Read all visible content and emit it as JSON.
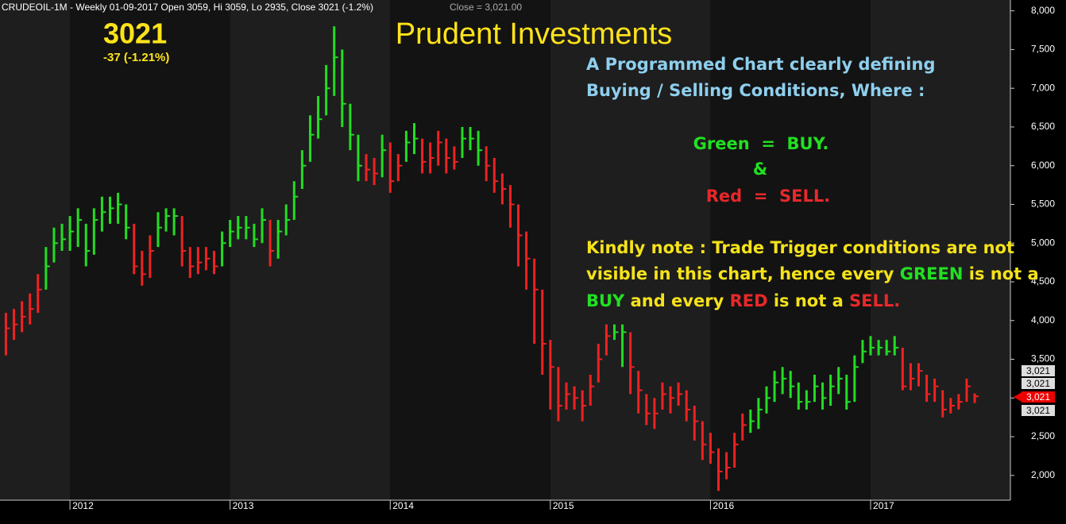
{
  "chart_data": {
    "type": "hlc",
    "header": "CRUDEOIL-1M - Weekly 01-09-2017 Open 3059, Hi 3059, Lo 2935, Close 3021 (-1.2%)",
    "header_close": "Close = 3,021.00",
    "last_price": "3021",
    "change": "-37 (-1.21%)",
    "title": "Prudent Investments",
    "annotations": [
      [
        {
          "text": "A Programmed Chart clearly defining",
          "color": "#8ecfee"
        }
      ],
      [
        {
          "text": "Buying / Selling Conditions, Where :",
          "color": "#8ecfee"
        }
      ],
      [
        {
          "text": "Green  =  BUY.",
          "color": "#22e022"
        }
      ],
      [
        {
          "text": "&",
          "color": "#22e022"
        }
      ],
      [
        {
          "text": "Red  =  SELL.",
          "color": "#e8282a"
        }
      ],
      [
        {
          "text": "Kindly note : Trade Trigger conditions are not",
          "color": "#f5e21a"
        }
      ],
      [
        {
          "text": "visible in this chart, hence every ",
          "color": "#f5e21a"
        },
        {
          "text": "GREEN",
          "color": "#22e022"
        },
        {
          "text": " is not a",
          "color": "#f5e21a"
        }
      ],
      [
        {
          "text": "BUY",
          "color": "#22e022"
        },
        {
          "text": " and every ",
          "color": "#f5e21a"
        },
        {
          "text": "RED",
          "color": "#e8282a"
        },
        {
          "text": " is not a ",
          "color": "#f5e21a"
        },
        {
          "text": "SELL.",
          "color": "#e8282a"
        }
      ]
    ],
    "price_tags": [
      "3,021",
      "3,021",
      "3,021",
      "3,021"
    ],
    "x": [
      2011.6,
      2011.65,
      2011.7,
      2011.75,
      2011.8,
      2011.85,
      2011.9,
      2011.95,
      2012.0,
      2012.05,
      2012.1,
      2012.15,
      2012.2,
      2012.25,
      2012.3,
      2012.35,
      2012.4,
      2012.45,
      2012.5,
      2012.55,
      2012.6,
      2012.65,
      2012.7,
      2012.75,
      2012.8,
      2012.85,
      2012.9,
      2012.95,
      2013.0,
      2013.05,
      2013.1,
      2013.15,
      2013.2,
      2013.25,
      2013.3,
      2013.35,
      2013.4,
      2013.45,
      2013.5,
      2013.55,
      2013.6,
      2013.65,
      2013.7,
      2013.75,
      2013.8,
      2013.85,
      2013.9,
      2013.95,
      2014.0,
      2014.05,
      2014.1,
      2014.15,
      2014.2,
      2014.25,
      2014.3,
      2014.35,
      2014.4,
      2014.45,
      2014.5,
      2014.55,
      2014.6,
      2014.65,
      2014.7,
      2014.75,
      2014.8,
      2014.85,
      2014.9,
      2014.95,
      2015.0,
      2015.05,
      2015.1,
      2015.15,
      2015.2,
      2015.25,
      2015.3,
      2015.35,
      2015.4,
      2015.45,
      2015.5,
      2015.55,
      2015.6,
      2015.65,
      2015.7,
      2015.75,
      2015.8,
      2015.85,
      2015.9,
      2015.95,
      2016.0,
      2016.05,
      2016.1,
      2016.15,
      2016.2,
      2016.25,
      2016.3,
      2016.35,
      2016.4,
      2016.45,
      2016.5,
      2016.55,
      2016.6,
      2016.65,
      2016.7,
      2016.75,
      2016.8,
      2016.85,
      2016.9,
      2016.95,
      2017.0,
      2017.05,
      2017.1,
      2017.15,
      2017.2,
      2017.25,
      2017.3,
      2017.35,
      2017.4,
      2017.45,
      2017.5,
      2017.55,
      2017.6,
      2017.65
    ],
    "high": [
      4100,
      4150,
      4250,
      4350,
      4600,
      4950,
      5200,
      5250,
      5350,
      5450,
      5250,
      5450,
      5600,
      5600,
      5650,
      5500,
      5250,
      4900,
      5100,
      5400,
      5450,
      5450,
      5350,
      4950,
      4950,
      4950,
      4900,
      5150,
      5300,
      5350,
      5350,
      5250,
      5450,
      5300,
      5300,
      5500,
      5800,
      6200,
      6650,
      6900,
      7300,
      7800,
      7500,
      6800,
      6400,
      6150,
      6100,
      6400,
      6300,
      6150,
      6450,
      6550,
      6350,
      6300,
      6450,
      6350,
      6250,
      6500,
      6500,
      6450,
      6250,
      6100,
      5900,
      5750,
      5500,
      5150,
      4800,
      4400,
      3750,
      3400,
      3200,
      3150,
      3100,
      3300,
      3700,
      3950,
      3950,
      3950,
      3850,
      3350,
      3050,
      3000,
      3200,
      3150,
      3200,
      3100,
      2900,
      2700,
      2550,
      2350,
      2300,
      2550,
      2800,
      2850,
      3000,
      3150,
      3350,
      3400,
      3350,
      3200,
      3100,
      3300,
      3200,
      3300,
      3400,
      3300,
      3550,
      3750,
      3800,
      3750,
      3750,
      3800,
      3650,
      3450,
      3450,
      3300,
      3250,
      3100,
      3000,
      3050,
      3250,
      3059
    ],
    "low": [
      3550,
      3750,
      3850,
      3950,
      4100,
      4400,
      4750,
      4900,
      4900,
      4950,
      4700,
      4850,
      5150,
      5250,
      5250,
      5050,
      4600,
      4450,
      4550,
      4950,
      5150,
      5100,
      4700,
      4550,
      4600,
      4650,
      4600,
      4700,
      4950,
      5050,
      5050,
      4950,
      5000,
      4700,
      4800,
      5100,
      5300,
      5700,
      6050,
      6350,
      6650,
      6900,
      6500,
      6200,
      5800,
      5800,
      5750,
      5850,
      5650,
      5800,
      6050,
      6150,
      5900,
      5900,
      6000,
      5900,
      5950,
      6100,
      6200,
      6000,
      5800,
      5650,
      5500,
      5200,
      4700,
      4400,
      3700,
      3300,
      2850,
      2700,
      2850,
      2850,
      2700,
      2900,
      3200,
      3550,
      3750,
      3400,
      3050,
      2800,
      2650,
      2600,
      2850,
      2800,
      2900,
      2700,
      2450,
      2200,
      2150,
      1800,
      1950,
      2100,
      2450,
      2550,
      2600,
      2800,
      2950,
      3050,
      3000,
      2850,
      2850,
      2950,
      2850,
      2900,
      3050,
      2850,
      2950,
      3450,
      3550,
      3550,
      3550,
      3550,
      3100,
      3100,
      3150,
      2950,
      2950,
      2750,
      2800,
      2850,
      2950,
      2935
    ],
    "close": [
      3900,
      3950,
      4050,
      4150,
      4400,
      4700,
      5000,
      5050,
      5150,
      5300,
      4900,
      5300,
      5400,
      5450,
      5500,
      5200,
      4700,
      4600,
      4900,
      5200,
      5350,
      5350,
      4900,
      4700,
      4750,
      4800,
      4700,
      5000,
      5150,
      5200,
      5200,
      5050,
      5300,
      4900,
      5150,
      5300,
      5600,
      6000,
      6400,
      6600,
      7000,
      7400,
      6800,
      6400,
      6000,
      5950,
      5900,
      6200,
      5800,
      6000,
      6300,
      6350,
      6050,
      6100,
      6300,
      6100,
      6050,
      6350,
      6350,
      6200,
      6000,
      5800,
      5700,
      5500,
      5100,
      4800,
      4400,
      3700,
      3400,
      2900,
      3050,
      3000,
      2900,
      3150,
      3500,
      3800,
      3850,
      3850,
      3400,
      3100,
      2800,
      2800,
      3050,
      3000,
      3050,
      2850,
      2700,
      2400,
      2300,
      2050,
      2100,
      2400,
      2650,
      2700,
      2850,
      3000,
      3200,
      3250,
      3150,
      2950,
      2950,
      3150,
      3000,
      3150,
      3250,
      2950,
      3400,
      3600,
      3650,
      3650,
      3600,
      3650,
      3150,
      3250,
      3350,
      3050,
      3150,
      2850,
      2900,
      2950,
      3150,
      3021
    ],
    "bar_colors": [
      "#e22",
      "#e22",
      "#e22",
      "#e22",
      "#e22",
      "#2d2",
      "#2d2",
      "#2d2",
      "#2d2",
      "#2d2",
      "#2d2",
      "#2d2",
      "#2d2",
      "#2d2",
      "#2d2",
      "#2d2",
      "#e22",
      "#e22",
      "#e22",
      "#2d2",
      "#2d2",
      "#2d2",
      "#e22",
      "#e22",
      "#e22",
      "#e22",
      "#e22",
      "#2d2",
      "#2d2",
      "#2d2",
      "#2d2",
      "#2d2",
      "#2d2",
      "#e22",
      "#2d2",
      "#2d2",
      "#2d2",
      "#2d2",
      "#2d2",
      "#2d2",
      "#2d2",
      "#2d2",
      "#2d2",
      "#2d2",
      "#2d2",
      "#e22",
      "#e22",
      "#2d2",
      "#e22",
      "#e22",
      "#2d2",
      "#2d2",
      "#e22",
      "#e22",
      "#e22",
      "#e22",
      "#e22",
      "#2d2",
      "#2d2",
      "#2d2",
      "#e22",
      "#e22",
      "#e22",
      "#e22",
      "#e22",
      "#e22",
      "#e22",
      "#e22",
      "#e22",
      "#e22",
      "#e22",
      "#e22",
      "#e22",
      "#e22",
      "#e22",
      "#e22",
      "#2d2",
      "#2d2",
      "#e22",
      "#e22",
      "#e22",
      "#e22",
      "#e22",
      "#e22",
      "#e22",
      "#e22",
      "#e22",
      "#e22",
      "#e22",
      "#e22",
      "#e22",
      "#e22",
      "#e22",
      "#2d2",
      "#2d2",
      "#2d2",
      "#2d2",
      "#2d2",
      "#2d2",
      "#2d2",
      "#2d2",
      "#2d2",
      "#2d2",
      "#2d2",
      "#2d2",
      "#2d2",
      "#2d2",
      "#2d2",
      "#2d2",
      "#2d2",
      "#2d2",
      "#2d2",
      "#e22",
      "#e22",
      "#e22",
      "#e22",
      "#e22",
      "#e22",
      "#e22",
      "#e22",
      "#e22",
      "#e22"
    ],
    "xlim": [
      2011.563,
      2017.873
    ],
    "xticks": [
      2012,
      2013,
      2014,
      2015,
      2016,
      2017
    ],
    "ylim": [
      1680,
      8140
    ],
    "yticks": [
      {
        "value": 2000,
        "label": "2,000"
      },
      {
        "value": 2500,
        "label": "2,500"
      },
      {
        "value": 3000,
        "label": "3,000"
      },
      {
        "value": 3500,
        "label": "3,500"
      },
      {
        "value": 4000,
        "label": "4,000"
      },
      {
        "value": 4500,
        "label": "4,500"
      },
      {
        "value": 5000,
        "label": "5,000"
      },
      {
        "value": 5500,
        "label": "5,500"
      },
      {
        "value": 6000,
        "label": "6,000"
      },
      {
        "value": 6500,
        "label": "6,500"
      },
      {
        "value": 7000,
        "label": "7,000"
      },
      {
        "value": 7500,
        "label": "7,500"
      },
      {
        "value": 8000,
        "label": "8,000"
      }
    ]
  }
}
